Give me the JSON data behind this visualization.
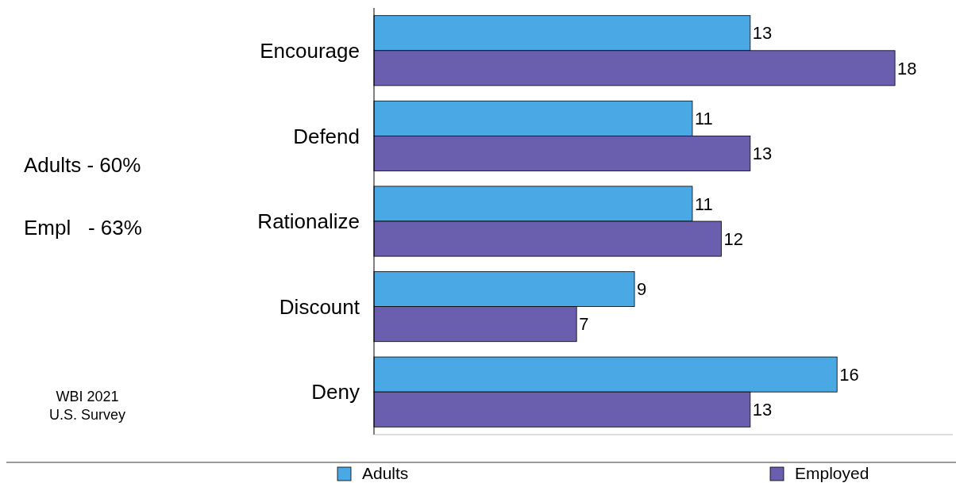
{
  "chart_data": {
    "type": "bar",
    "orientation": "horizontal",
    "categories": [
      "Encourage",
      "Defend",
      "Rationalize",
      "Discount",
      "Deny"
    ],
    "series": [
      {
        "name": "Adults",
        "color": "#4aa8e4",
        "values": [
          13,
          11,
          11,
          9,
          16
        ]
      },
      {
        "name": "Employed",
        "color": "#6a5eae",
        "values": [
          18,
          13,
          12,
          7,
          13
        ]
      }
    ],
    "xlim": [
      0,
      20
    ],
    "data_labels": true,
    "legend": "bottom",
    "tick_labels": "y",
    "annotations": [
      "Adults - 60%",
      "Empl   - 63%",
      "WBI 2021\nU.S. Survey"
    ]
  }
}
